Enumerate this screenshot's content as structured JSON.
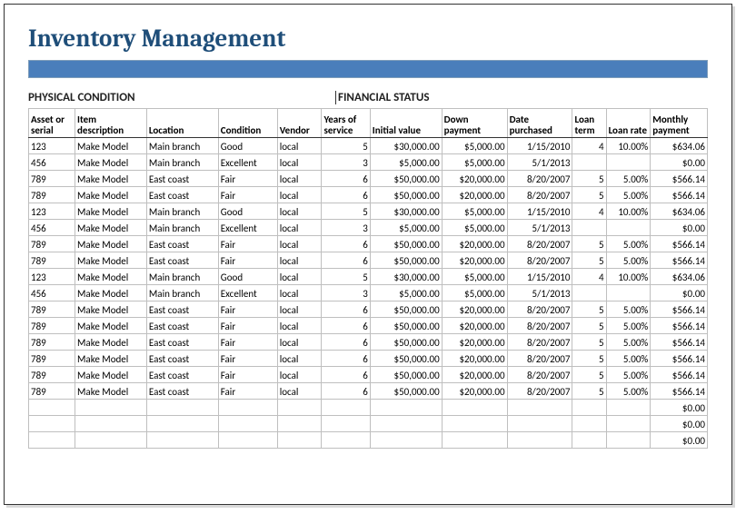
{
  "title": "Inventory Management",
  "sections": {
    "physical": "PHYSICAL CONDITION",
    "financial": "FINANCIAL STATUS"
  },
  "colors": {
    "title": "#1f4e79",
    "bar": "#4a7ebb",
    "border": "#bfbfbf"
  },
  "columns": [
    {
      "key": "serial",
      "label": "Asset or serial",
      "cls": "col-serial",
      "align": "left"
    },
    {
      "key": "desc",
      "label": "Item description",
      "cls": "col-desc",
      "align": "left"
    },
    {
      "key": "loc",
      "label": "Location",
      "cls": "col-loc",
      "align": "left"
    },
    {
      "key": "cond",
      "label": "Condition",
      "cls": "col-cond",
      "align": "left"
    },
    {
      "key": "vendor",
      "label": "Vendor",
      "cls": "col-vendor",
      "align": "left"
    },
    {
      "key": "years",
      "label": "Years of service",
      "cls": "col-years",
      "align": "right"
    },
    {
      "key": "initval",
      "label": "Initial value",
      "cls": "col-initval divider-left",
      "align": "right"
    },
    {
      "key": "down",
      "label": "Down payment",
      "cls": "col-down",
      "align": "right"
    },
    {
      "key": "date",
      "label": "Date purchased",
      "cls": "col-date",
      "align": "right"
    },
    {
      "key": "term",
      "label": "Loan term",
      "cls": "col-term",
      "align": "right"
    },
    {
      "key": "rate",
      "label": "Loan rate",
      "cls": "col-rate",
      "align": "right"
    },
    {
      "key": "monthly",
      "label": "Monthly payment",
      "cls": "col-monthly",
      "align": "right"
    }
  ],
  "rows": [
    {
      "serial": "123",
      "desc": "Make Model",
      "loc": "Main branch",
      "cond": "Good",
      "vendor": "local",
      "years": "5",
      "initval": "$30,000.00",
      "down": "$5,000.00",
      "date": "1/15/2010",
      "term": "4",
      "rate": "10.00%",
      "monthly": "$634.06"
    },
    {
      "serial": "456",
      "desc": "Make Model",
      "loc": "Main branch",
      "cond": "Excellent",
      "vendor": "local",
      "years": "3",
      "initval": "$5,000.00",
      "down": "$5,000.00",
      "date": "5/1/2013",
      "term": "",
      "rate": "",
      "monthly": "$0.00"
    },
    {
      "serial": "789",
      "desc": "Make Model",
      "loc": "East coast",
      "cond": "Fair",
      "vendor": "local",
      "years": "6",
      "initval": "$50,000.00",
      "down": "$20,000.00",
      "date": "8/20/2007",
      "term": "5",
      "rate": "5.00%",
      "monthly": "$566.14"
    },
    {
      "serial": "789",
      "desc": "Make Model",
      "loc": "East coast",
      "cond": "Fair",
      "vendor": "local",
      "years": "6",
      "initval": "$50,000.00",
      "down": "$20,000.00",
      "date": "8/20/2007",
      "term": "5",
      "rate": "5.00%",
      "monthly": "$566.14"
    },
    {
      "serial": "123",
      "desc": "Make Model",
      "loc": "Main branch",
      "cond": "Good",
      "vendor": "local",
      "years": "5",
      "initval": "$30,000.00",
      "down": "$5,000.00",
      "date": "1/15/2010",
      "term": "4",
      "rate": "10.00%",
      "monthly": "$634.06"
    },
    {
      "serial": "456",
      "desc": "Make Model",
      "loc": "Main branch",
      "cond": "Excellent",
      "vendor": "local",
      "years": "3",
      "initval": "$5,000.00",
      "down": "$5,000.00",
      "date": "5/1/2013",
      "term": "",
      "rate": "",
      "monthly": "$0.00"
    },
    {
      "serial": "789",
      "desc": "Make Model",
      "loc": "East coast",
      "cond": "Fair",
      "vendor": "local",
      "years": "6",
      "initval": "$50,000.00",
      "down": "$20,000.00",
      "date": "8/20/2007",
      "term": "5",
      "rate": "5.00%",
      "monthly": "$566.14"
    },
    {
      "serial": "789",
      "desc": "Make Model",
      "loc": "East coast",
      "cond": "Fair",
      "vendor": "local",
      "years": "6",
      "initval": "$50,000.00",
      "down": "$20,000.00",
      "date": "8/20/2007",
      "term": "5",
      "rate": "5.00%",
      "monthly": "$566.14"
    },
    {
      "serial": "123",
      "desc": "Make Model",
      "loc": "Main branch",
      "cond": "Good",
      "vendor": "local",
      "years": "5",
      "initval": "$30,000.00",
      "down": "$5,000.00",
      "date": "1/15/2010",
      "term": "4",
      "rate": "10.00%",
      "monthly": "$634.06"
    },
    {
      "serial": "456",
      "desc": "Make Model",
      "loc": "Main branch",
      "cond": "Excellent",
      "vendor": "local",
      "years": "3",
      "initval": "$5,000.00",
      "down": "$5,000.00",
      "date": "5/1/2013",
      "term": "",
      "rate": "",
      "monthly": "$0.00"
    },
    {
      "serial": "789",
      "desc": "Make Model",
      "loc": "East coast",
      "cond": "Fair",
      "vendor": "local",
      "years": "6",
      "initval": "$50,000.00",
      "down": "$20,000.00",
      "date": "8/20/2007",
      "term": "5",
      "rate": "5.00%",
      "monthly": "$566.14"
    },
    {
      "serial": "789",
      "desc": "Make Model",
      "loc": "East coast",
      "cond": "Fair",
      "vendor": "local",
      "years": "6",
      "initval": "$50,000.00",
      "down": "$20,000.00",
      "date": "8/20/2007",
      "term": "5",
      "rate": "5.00%",
      "monthly": "$566.14"
    },
    {
      "serial": "789",
      "desc": "Make Model",
      "loc": "East coast",
      "cond": "Fair",
      "vendor": "local",
      "years": "6",
      "initval": "$50,000.00",
      "down": "$20,000.00",
      "date": "8/20/2007",
      "term": "5",
      "rate": "5.00%",
      "monthly": "$566.14"
    },
    {
      "serial": "789",
      "desc": "Make Model",
      "loc": "East coast",
      "cond": "Fair",
      "vendor": "local",
      "years": "6",
      "initval": "$50,000.00",
      "down": "$20,000.00",
      "date": "8/20/2007",
      "term": "5",
      "rate": "5.00%",
      "monthly": "$566.14"
    },
    {
      "serial": "789",
      "desc": "Make Model",
      "loc": "East coast",
      "cond": "Fair",
      "vendor": "local",
      "years": "6",
      "initval": "$50,000.00",
      "down": "$20,000.00",
      "date": "8/20/2007",
      "term": "5",
      "rate": "5.00%",
      "monthly": "$566.14"
    },
    {
      "serial": "789",
      "desc": "Make Model",
      "loc": "East coast",
      "cond": "Fair",
      "vendor": "local",
      "years": "6",
      "initval": "$50,000.00",
      "down": "$20,000.00",
      "date": "8/20/2007",
      "term": "5",
      "rate": "5.00%",
      "monthly": "$566.14"
    },
    {
      "serial": "",
      "desc": "",
      "loc": "",
      "cond": "",
      "vendor": "",
      "years": "",
      "initval": "",
      "down": "",
      "date": "",
      "term": "",
      "rate": "",
      "monthly": "$0.00"
    },
    {
      "serial": "",
      "desc": "",
      "loc": "",
      "cond": "",
      "vendor": "",
      "years": "",
      "initval": "",
      "down": "",
      "date": "",
      "term": "",
      "rate": "",
      "monthly": "$0.00"
    },
    {
      "serial": "",
      "desc": "",
      "loc": "",
      "cond": "",
      "vendor": "",
      "years": "",
      "initval": "",
      "down": "",
      "date": "",
      "term": "",
      "rate": "",
      "monthly": "$0.00"
    }
  ]
}
